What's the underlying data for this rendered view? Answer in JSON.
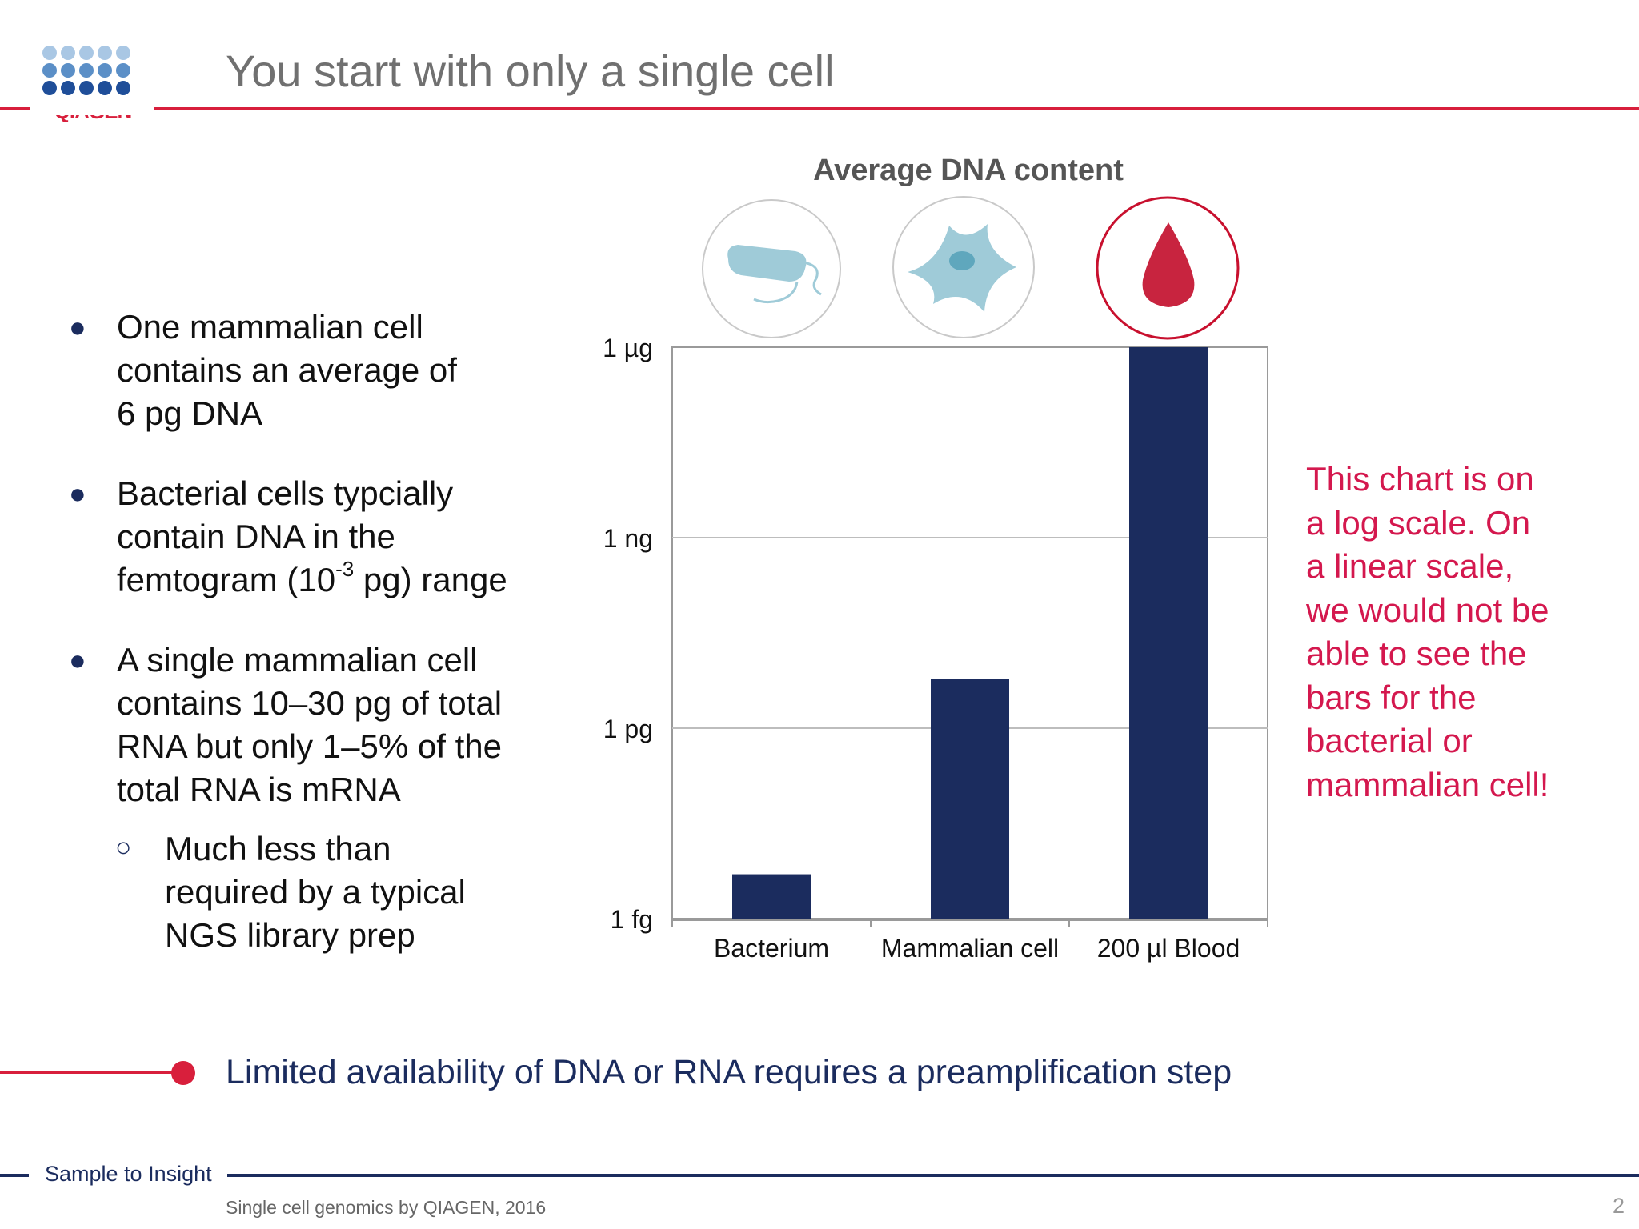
{
  "header": {
    "logo_text": "QIAGEN",
    "title": "You start with only a single cell"
  },
  "bullets": [
    {
      "lines": [
        "One mammalian cell",
        "contains an average of",
        "6 pg DNA"
      ]
    },
    {
      "line1": "Bacterial cells typcially",
      "line2": "contain DNA in the",
      "line3_pre": "femtogram (10",
      "line3_sup": "-3",
      "line3_post": " pg) range"
    },
    {
      "lines": [
        "A single mammalian cell",
        "contains 10–30 pg of total",
        "RNA but only 1–5% of the",
        "total RNA is mRNA"
      ]
    },
    {
      "lines": [
        "Much less than",
        "required by a typical",
        "NGS library prep"
      ]
    }
  ],
  "icons": {
    "bacterium": "bacterium-icon",
    "mammalian_cell": "mammalian-cell-icon",
    "blood": "blood-drop-icon"
  },
  "colors": {
    "bar": "#1b2c5e",
    "accent": "#d81f3c",
    "note": "#d4184e",
    "icon_fill": "#9fcbd8",
    "grid": "#bdbdbd"
  },
  "chart_data": {
    "type": "bar",
    "title": "Average DNA content",
    "scale": "log",
    "categories": [
      "Bacterium",
      "Mammalian cell",
      "200 µl Blood"
    ],
    "values_pg": [
      0.005,
      6,
      1000000
    ],
    "ylim_pg": [
      0.001,
      1000000
    ],
    "yticks": [
      {
        "label": "1 µg",
        "value_pg": 1000000
      },
      {
        "label": "1 ng",
        "value_pg": 1000
      },
      {
        "label": "1 pg",
        "value_pg": 1
      },
      {
        "label": "1 fg",
        "value_pg": 0.001
      }
    ],
    "grid": true,
    "legend": "none"
  },
  "note": {
    "lines": [
      "This chart is on",
      "a log scale. On",
      "a linear scale,",
      "we would not be",
      "able to see the",
      "bars for the",
      "bacterial or",
      "mammalian cell!"
    ]
  },
  "bottom_message": "Limited availability of DNA or RNA requires a preamplification step",
  "footer": {
    "tagline": "Sample to Insight",
    "left_text": "Single cell genomics by QIAGEN, 2016",
    "page_number": "2"
  }
}
